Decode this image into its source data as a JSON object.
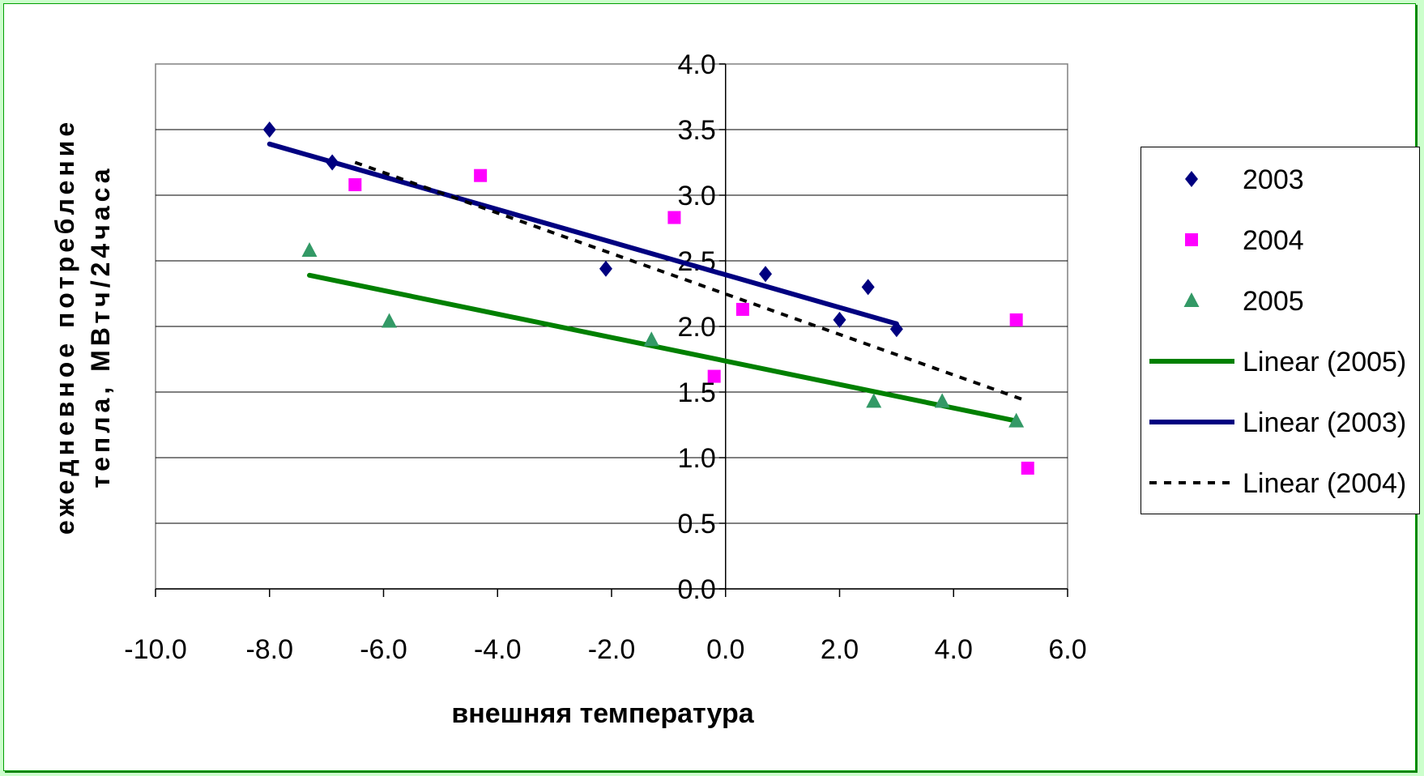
{
  "chart_data": {
    "type": "scatter",
    "title": "",
    "xlabel": "внешняя температура",
    "ylabel": "ежедневное потребление тепла, МВтч/24часа",
    "xlim": [
      -10.0,
      6.0
    ],
    "ylim": [
      0.0,
      4.0
    ],
    "x_ticks": [
      "-10.0",
      "-8.0",
      "-6.0",
      "-4.0",
      "-2.0",
      "0.0",
      "2.0",
      "4.0",
      "6.0"
    ],
    "y_ticks": [
      "0.0",
      "0.5",
      "1.0",
      "1.5",
      "2.0",
      "2.5",
      "3.0",
      "3.5",
      "4.0"
    ],
    "grid": "horizontal",
    "legend_position": "right",
    "series": [
      {
        "name": "2003",
        "marker": "diamond",
        "color": "#000080",
        "points": [
          [
            -8.0,
            3.5
          ],
          [
            -6.9,
            3.25
          ],
          [
            -2.1,
            2.44
          ],
          [
            0.7,
            2.4
          ],
          [
            2.0,
            2.05
          ],
          [
            2.5,
            2.3
          ],
          [
            3.0,
            1.98
          ]
        ]
      },
      {
        "name": "2004",
        "marker": "square",
        "color": "#ff00ff",
        "points": [
          [
            -6.5,
            3.08
          ],
          [
            -4.3,
            3.15
          ],
          [
            -0.9,
            2.83
          ],
          [
            -0.2,
            1.62
          ],
          [
            0.3,
            2.13
          ],
          [
            5.1,
            2.05
          ],
          [
            5.3,
            0.92
          ]
        ]
      },
      {
        "name": "2005",
        "marker": "triangle",
        "color": "#339966",
        "points": [
          [
            -7.3,
            2.58
          ],
          [
            -5.9,
            2.04
          ],
          [
            -1.3,
            1.9
          ],
          [
            2.6,
            1.43
          ],
          [
            3.8,
            1.43
          ],
          [
            5.1,
            1.28
          ]
        ]
      }
    ],
    "trendlines": [
      {
        "name": "Linear (2005)",
        "color": "#008000",
        "style": "solid",
        "width": "thick",
        "x": [
          -7.3,
          5.1
        ],
        "y": [
          2.39,
          1.28
        ]
      },
      {
        "name": "Linear (2003)",
        "color": "#000080",
        "style": "solid",
        "width": "thick",
        "x": [
          -8.0,
          3.0
        ],
        "y": [
          3.39,
          2.02
        ]
      },
      {
        "name": "Linear (2004)",
        "color": "#000000",
        "style": "dashed",
        "width": "medium",
        "x": [
          -6.5,
          5.3
        ],
        "y": [
          3.25,
          1.43
        ]
      }
    ],
    "legend": [
      {
        "label": "2003",
        "kind": "diamond",
        "color": "#000080"
      },
      {
        "label": "2004",
        "kind": "square",
        "color": "#ff00ff"
      },
      {
        "label": "2005",
        "kind": "triangle",
        "color": "#339966"
      },
      {
        "label": "Linear (2005)",
        "kind": "line",
        "color": "#008000"
      },
      {
        "label": "Linear (2003)",
        "kind": "line",
        "color": "#000080"
      },
      {
        "label": "Linear (2004)",
        "kind": "dashed",
        "color": "#000000"
      }
    ]
  }
}
